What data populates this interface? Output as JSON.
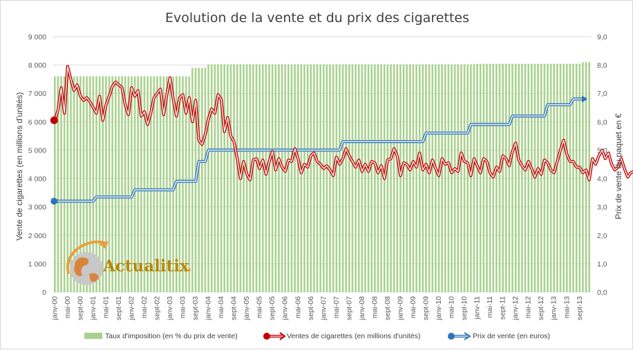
{
  "chart_data": {
    "type": "bar+line",
    "title": "Evolution de la vente et du prix des cigarettes",
    "y_left_label": "Vente  de cigarettes (en millions d'unités)",
    "y_right_label": "Prix de vente  du paquet en €",
    "y_left_ticks": [
      "0",
      "1 000",
      "2 000",
      "3 000",
      "4 000",
      "5 000",
      "6 000",
      "7 000",
      "8 000",
      "9 000"
    ],
    "y_right_ticks": [
      "0,0",
      "1,0",
      "2,0",
      "3,0",
      "4,0",
      "5,0",
      "6,0",
      "7,0",
      "8,0",
      "9,0"
    ],
    "y_left_range": [
      0,
      9000
    ],
    "y_right_range": [
      0,
      9
    ],
    "x_tick_labels": [
      "janv-00",
      "mai-00",
      "sept-00",
      "janv-01",
      "mai-01",
      "sept-01",
      "janv-02",
      "mai-02",
      "sept-02",
      "janv-03",
      "mai-03",
      "sept-03",
      "janv-04",
      "mai-04",
      "sept-04",
      "janv-05",
      "mai-05",
      "sept-05",
      "janv-06",
      "mai-06",
      "sept-06",
      "janv-07",
      "mai-07",
      "sept-07",
      "janv-08",
      "mai-08",
      "sept-08",
      "janv-09",
      "mai-09",
      "sept-09",
      "janv-10",
      "mai-10",
      "sept-10",
      "janv-11",
      "mai-11",
      "sept-11",
      "janv-12",
      "mai-12",
      "sept-12",
      "janv-13",
      "mai-13",
      "sept-13"
    ],
    "grid": true,
    "legend_position": "bottom",
    "series": [
      {
        "name": "Taux d'imposition (en % du prix de vente)",
        "kind": "bar",
        "axis": "right",
        "color": "#a9d18e",
        "segments": [
          {
            "from": "janv-00",
            "to": "juil-03",
            "value": 7.6
          },
          {
            "from": "août-03",
            "to": "déc-03",
            "value": 7.9
          },
          {
            "from": "janv-04",
            "to": "déc-10",
            "value": 8.02
          },
          {
            "from": "janv-11",
            "to": "sept-13",
            "value": 8.04
          },
          {
            "from": "oct-13",
            "to": "déc-13",
            "value": 8.1
          }
        ]
      },
      {
        "name": "Ventes de cigarettes (en millions d'unités)",
        "kind": "line",
        "axis": "left",
        "color": "#c00000",
        "values": [
          6050,
          6400,
          7200,
          6300,
          7950,
          7500,
          7100,
          7300,
          6900,
          6750,
          6850,
          6700,
          6500,
          6300,
          6900,
          6050,
          6600,
          6900,
          7250,
          7400,
          7300,
          7200,
          6600,
          6250,
          7200,
          6900,
          7100,
          6200,
          6350,
          5900,
          6300,
          6850,
          7000,
          7150,
          6250,
          6950,
          7550,
          6800,
          6200,
          6850,
          6950,
          6300,
          6850,
          6000,
          6750,
          5350,
          5200,
          5550,
          6100,
          6450,
          6300,
          6950,
          6800,
          5650,
          6150,
          5500,
          5300,
          4700,
          4000,
          4600,
          4150,
          3950,
          4650,
          4700,
          4350,
          4650,
          4150,
          4600,
          4950,
          4300,
          4700,
          4400,
          4250,
          4650,
          4600,
          5050,
          4700,
          4200,
          4500,
          4400,
          4800,
          4900,
          4600,
          4500,
          4350,
          4450,
          4300,
          4100,
          4750,
          4500,
          4700,
          5050,
          4800,
          4600,
          4400,
          4650,
          4250,
          4500,
          4250,
          4600,
          4550,
          4200,
          4450,
          4000,
          4650,
          4700,
          5050,
          4800,
          4100,
          4550,
          4500,
          4300,
          4600,
          4400,
          4900,
          4300,
          4500,
          4200,
          4650,
          4350,
          4100,
          4700,
          4500,
          4550,
          4200,
          4350,
          4250,
          4900,
          4600,
          4550,
          4100,
          4700,
          4450,
          4200,
          4700,
          4600,
          4200,
          4050,
          4400,
          4250,
          4800,
          4700,
          4450,
          4950,
          5250,
          4650,
          4450,
          4300,
          4600,
          4350,
          4050,
          4350,
          4150,
          4650,
          4550,
          4300,
          4200,
          4600,
          5000,
          5350,
          4850,
          4600,
          4600,
          4400,
          4400,
          4200,
          4300,
          3950,
          4700,
          4500,
          4800,
          5000,
          4700,
          4900,
          4500,
          4300,
          4400,
          4700,
          4350,
          4050,
          4200,
          4250,
          4000,
          4350,
          4500,
          4650,
          4700,
          4650,
          4400,
          4300,
          4000,
          3850,
          3750,
          4100,
          3800,
          3600,
          3850,
          4000,
          4150,
          4050,
          4150,
          4450,
          4150,
          3800,
          3950,
          4100
        ]
      },
      {
        "name": "Prix de vente (en euros)",
        "kind": "line",
        "axis": "right",
        "color": "#2e75b6",
        "steps": [
          {
            "from": 0,
            "value": 3.2
          },
          {
            "from": 13,
            "value": 3.35
          },
          {
            "from": 25,
            "value": 3.6
          },
          {
            "from": 38,
            "value": 3.9
          },
          {
            "from": 45,
            "value": 4.6
          },
          {
            "from": 48,
            "value": 5.0
          },
          {
            "from": 90,
            "value": 5.3
          },
          {
            "from": 116,
            "value": 5.6
          },
          {
            "from": 130,
            "value": 5.9
          },
          {
            "from": 143,
            "value": 6.2
          },
          {
            "from": 154,
            "value": 6.6
          },
          {
            "from": 162,
            "value": 6.8
          }
        ],
        "count": 167
      }
    ]
  },
  "logo": {
    "text": "Actualitix",
    "dot": "."
  }
}
